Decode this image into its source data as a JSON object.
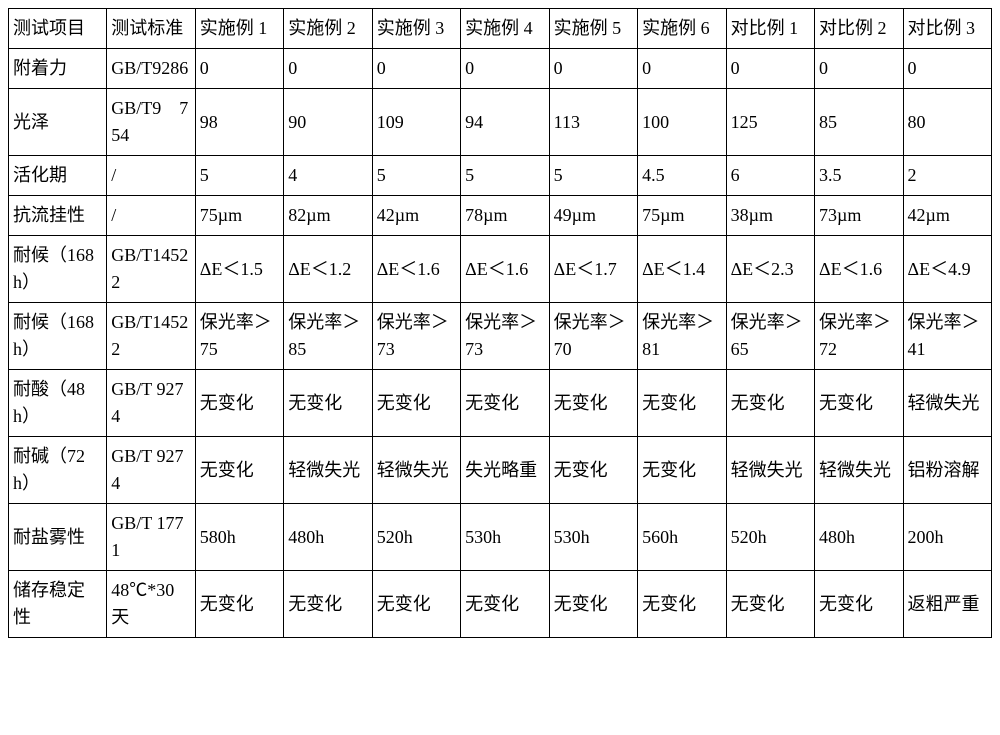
{
  "table": {
    "columns": [
      "测试项目",
      "测试标准",
      "实施例 1",
      "实施例 2",
      "实施例 3",
      "实施例 4",
      "实施例 5",
      "实施例 6",
      "对比例 1",
      "对比例 2",
      "对比例 3"
    ],
    "rows": [
      [
        "附着力",
        "GB/T9286",
        "0",
        "0",
        "0",
        "0",
        "0",
        "0",
        "0",
        "0",
        "0"
      ],
      [
        "光泽",
        "GB/T9　754",
        "98",
        "90",
        "109",
        "94",
        "113",
        "100",
        "125",
        "85",
        "80"
      ],
      [
        "活化期",
        "/",
        "5",
        "4",
        "5",
        "5",
        "5",
        "4.5",
        "6",
        "3.5",
        "2"
      ],
      [
        "抗流挂性",
        "/",
        "75µm",
        "82µm",
        "42µm",
        "78µm",
        "49µm",
        "75µm",
        "38µm",
        "73µm",
        "42µm"
      ],
      [
        "耐候（168h）",
        "GB/T14522",
        "ΔE＜1.5",
        "ΔE＜1.2",
        "ΔE＜1.6",
        "ΔE＜1.6",
        "ΔE＜1.7",
        "ΔE＜1.4",
        "ΔE＜2.3",
        "ΔE＜1.6",
        "ΔE＜4.9"
      ],
      [
        "耐候（168h）",
        "GB/T14522",
        "保光率＞75",
        "保光率＞85",
        "保光率＞73",
        "保光率＞73",
        "保光率＞70",
        "保光率＞81",
        "保光率＞65",
        "保光率＞72",
        "保光率＞41"
      ],
      [
        "耐酸（48h）",
        "GB/T 9274",
        "无变化",
        "无变化",
        "无变化",
        "无变化",
        "无变化",
        "无变化",
        "无变化",
        "无变化",
        "轻微失光"
      ],
      [
        "耐碱（72h）",
        "GB/T 9274",
        "无变化",
        "轻微失光",
        "轻微失光",
        "失光略重",
        "无变化",
        "无变化",
        "轻微失光",
        "轻微失光",
        "铝粉溶解"
      ],
      [
        "耐盐雾性",
        "GB/T 1771",
        "580h",
        "480h",
        "520h",
        "530h",
        "530h",
        "560h",
        "520h",
        "480h",
        "200h"
      ],
      [
        "储存稳定性",
        "48℃*30 天",
        "无变化",
        "无变化",
        "无变化",
        "无变化",
        "无变化",
        "无变化",
        "无变化",
        "无变化",
        "返粗严重"
      ]
    ],
    "column_widths": [
      "10%",
      "9%",
      "9%",
      "9%",
      "9%",
      "9%",
      "9%",
      "9%",
      "9%",
      "9%",
      "9%"
    ],
    "border_color": "#000000",
    "background_color": "#ffffff",
    "text_color": "#000000",
    "font_size": 18,
    "font_family": "SimSun"
  }
}
